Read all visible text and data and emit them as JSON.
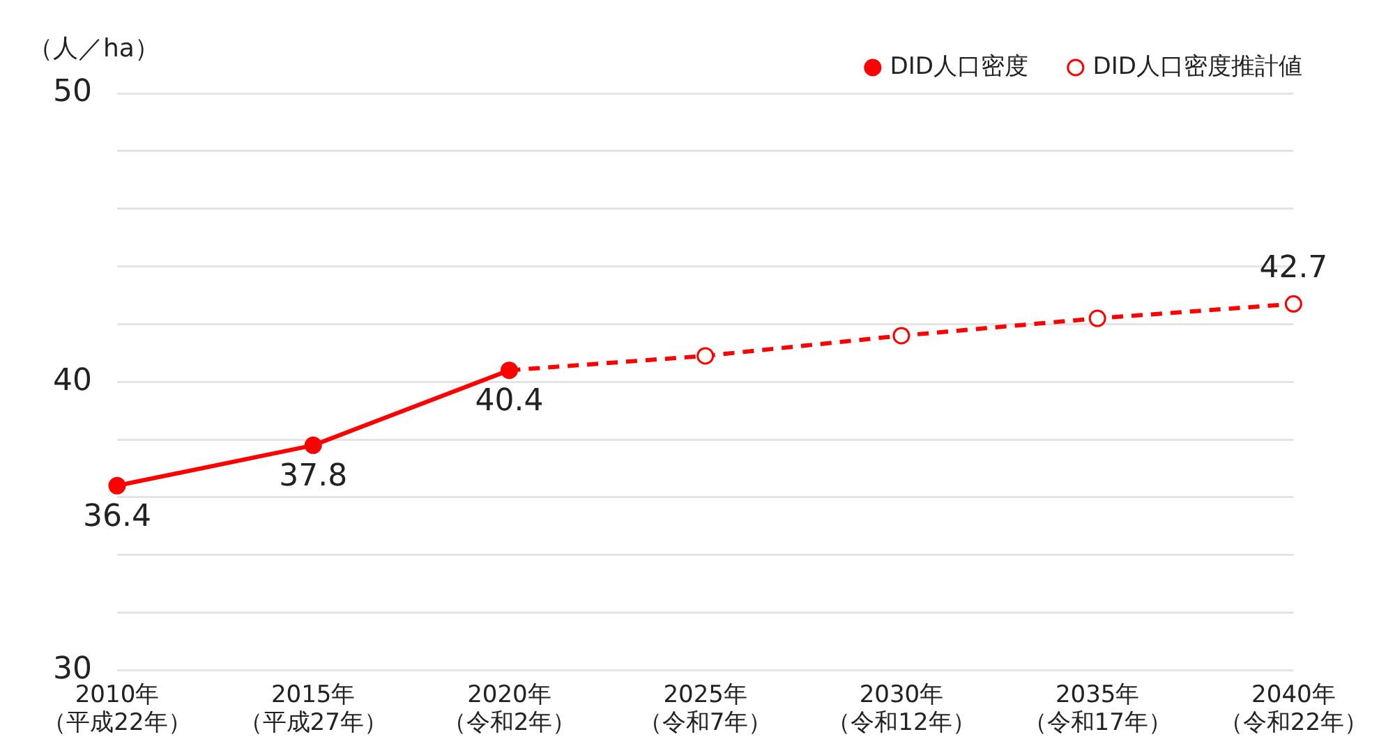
{
  "chart_data": {
    "type": "line",
    "ylabel": "（人／ha）",
    "categories": [
      "2010年（平成22年）",
      "2015年（平成27年）",
      "2020年（令和2年）",
      "2025年（令和7年）",
      "2030年（令和12年）",
      "2035年（令和17年）",
      "2040年（令和22年）"
    ],
    "series": [
      {
        "name": "DID人口密度",
        "color": "#ff0000",
        "line_style": "solid",
        "values": [
          36.4,
          37.8,
          40.4,
          null,
          null,
          null,
          null
        ],
        "value_labels": [
          "36.4",
          "37.8",
          "40.4",
          null,
          null,
          null,
          null
        ]
      },
      {
        "name": "DID人口密度推計値",
        "color": "#ff0000",
        "line_style": "dashed",
        "values": [
          null,
          null,
          40.4,
          40.9,
          41.6,
          42.2,
          42.7
        ],
        "value_labels": [
          null,
          null,
          null,
          null,
          null,
          null,
          "42.7"
        ]
      }
    ],
    "ylim": [
      30,
      50
    ],
    "yticks": [
      30,
      {
        "value": 32,
        "label": null
      },
      {
        "value": 34,
        "label": null
      },
      {
        "value": 36,
        "label": null
      },
      {
        "value": 38,
        "label": null
      },
      40,
      {
        "value": 42,
        "label": null
      },
      {
        "value": 44,
        "label": null
      },
      {
        "value": 46,
        "label": null
      },
      {
        "value": 48,
        "label": null
      },
      50
    ],
    "grid": "y",
    "legend": "top right",
    "marker": "circle"
  }
}
